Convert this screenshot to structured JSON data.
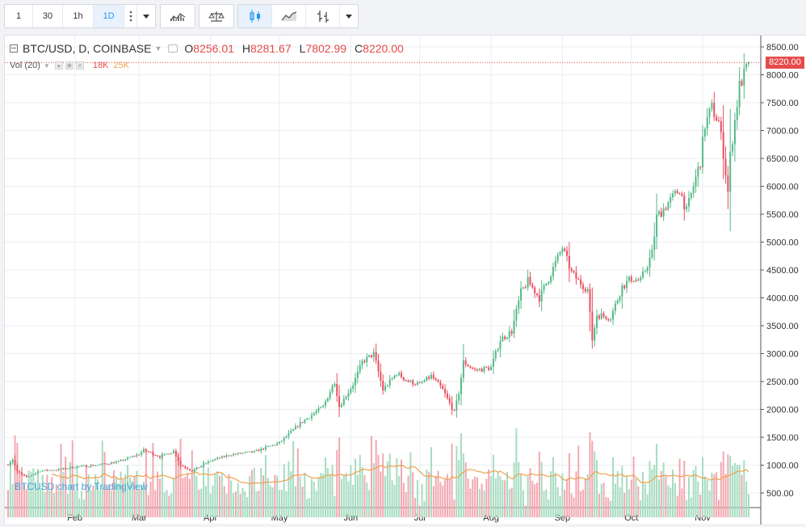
{
  "toolbar": {
    "intervals": [
      "1",
      "30",
      "1h",
      "1D"
    ],
    "active_interval": "1D"
  },
  "legend": {
    "symbol": "BTC/USD, D, COINBASE",
    "open_label": "O",
    "open": "8256.01",
    "high_label": "H",
    "high": "8281.67",
    "low_label": "L",
    "low": "7802.99",
    "close_label": "C",
    "close": "8220.00"
  },
  "volume": {
    "label": "Vol (20)",
    "value1": "18K",
    "value2": "25K"
  },
  "watermark": "BTCUSD chart by TradingView",
  "last_price": "8220.00",
  "colors": {
    "up": "#53b987",
    "down": "#eb4d5c",
    "up_vol": "#a6dcc0",
    "down_vol": "#f2a8b0",
    "ma": "#f0a050",
    "grid": "#eaedf0"
  },
  "chart_data": {
    "type": "candlestick",
    "y_ticks": [
      "8500.00",
      "8000.00",
      "7500.00",
      "7000.00",
      "6500.00",
      "6000.00",
      "5500.00",
      "5000.00",
      "4500.00",
      "4000.00",
      "3500.00",
      "3000.00",
      "2500.00",
      "2000.00",
      "1500.00",
      "1000.00",
      "500.00"
    ],
    "ylim": [
      350,
      8700
    ],
    "x_ticks": [
      "Feb",
      "Mar",
      "Apr",
      "May",
      "Jun",
      "Jul",
      "Aug",
      "Sep",
      "Oct",
      "Nov"
    ],
    "x_tick_dates": [
      "2017-02-01",
      "2017-03-01",
      "2017-04-01",
      "2017-05-01",
      "2017-06-01",
      "2017-07-01",
      "2017-08-01",
      "2017-09-01",
      "2017-10-01",
      "2017-11-01"
    ],
    "start_date": "2017-01-03",
    "end_date": "2017-11-21",
    "price_keypoints": [
      [
        "2017-01-03",
        1020
      ],
      [
        "2017-01-05",
        1100
      ],
      [
        "2017-01-07",
        880
      ],
      [
        "2017-01-11",
        780
      ],
      [
        "2017-01-17",
        900
      ],
      [
        "2017-01-25",
        920
      ],
      [
        "2017-02-01",
        970
      ],
      [
        "2017-02-10",
        1000
      ],
      [
        "2017-02-20",
        1060
      ],
      [
        "2017-03-01",
        1200
      ],
      [
        "2017-03-03",
        1270
      ],
      [
        "2017-03-10",
        1150
      ],
      [
        "2017-03-16",
        1250
      ],
      [
        "2017-03-19",
        1000
      ],
      [
        "2017-03-24",
        900
      ],
      [
        "2017-04-01",
        1080
      ],
      [
        "2017-04-10",
        1190
      ],
      [
        "2017-04-20",
        1240
      ],
      [
        "2017-05-01",
        1400
      ],
      [
        "2017-05-10",
        1750
      ],
      [
        "2017-05-20",
        2050
      ],
      [
        "2017-05-25",
        2500
      ],
      [
        "2017-05-27",
        2050
      ],
      [
        "2017-06-02",
        2450
      ],
      [
        "2017-06-06",
        2850
      ],
      [
        "2017-06-11",
        3000
      ],
      [
        "2017-06-15",
        2350
      ],
      [
        "2017-06-21",
        2650
      ],
      [
        "2017-06-26",
        2500
      ],
      [
        "2017-07-01",
        2450
      ],
      [
        "2017-07-06",
        2600
      ],
      [
        "2017-07-11",
        2350
      ],
      [
        "2017-07-16",
        1950
      ],
      [
        "2017-07-18",
        2300
      ],
      [
        "2017-07-20",
        2850
      ],
      [
        "2017-07-25",
        2700
      ],
      [
        "2017-08-01",
        2750
      ],
      [
        "2017-08-05",
        3250
      ],
      [
        "2017-08-10",
        3400
      ],
      [
        "2017-08-14",
        4100
      ],
      [
        "2017-08-17",
        4300
      ],
      [
        "2017-08-22",
        4000
      ],
      [
        "2017-08-26",
        4350
      ],
      [
        "2017-09-01",
        4900
      ],
      [
        "2017-09-05",
        4450
      ],
      [
        "2017-09-08",
        4300
      ],
      [
        "2017-09-12",
        4150
      ],
      [
        "2017-09-14",
        3250
      ],
      [
        "2017-09-16",
        3700
      ],
      [
        "2017-09-22",
        3650
      ],
      [
        "2017-09-27",
        4200
      ],
      [
        "2017-10-01",
        4350
      ],
      [
        "2017-10-05",
        4300
      ],
      [
        "2017-10-10",
        4800
      ],
      [
        "2017-10-12",
        5450
      ],
      [
        "2017-10-17",
        5700
      ],
      [
        "2017-10-22",
        5950
      ],
      [
        "2017-10-25",
        5550
      ],
      [
        "2017-10-31",
        6450
      ],
      [
        "2017-11-02",
        7100
      ],
      [
        "2017-11-05",
        7400
      ],
      [
        "2017-11-08",
        7150
      ],
      [
        "2017-11-10",
        6600
      ],
      [
        "2017-11-12",
        5900
      ],
      [
        "2017-11-13",
        6550
      ],
      [
        "2017-11-17",
        7800
      ],
      [
        "2017-11-20",
        8100
      ],
      [
        "2017-11-21",
        8220
      ]
    ],
    "volume_scale_ylabel": "",
    "volume_level_max": 1
  }
}
